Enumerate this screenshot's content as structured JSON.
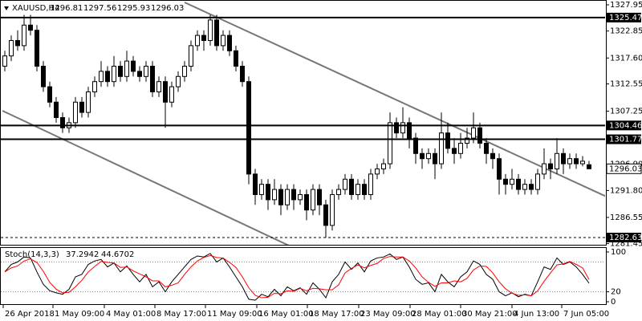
{
  "chart_data": {
    "type": "candlestick",
    "symbol": "XAUUSD,H4",
    "candles": [
      [
        1316,
        1319,
        1315,
        1318
      ],
      [
        1318,
        1322,
        1317,
        1321
      ],
      [
        1321,
        1323,
        1319,
        1320
      ],
      [
        1320,
        1326,
        1319,
        1324
      ],
      [
        1324,
        1326,
        1322,
        1323
      ],
      [
        1323,
        1324,
        1315,
        1316
      ],
      [
        1316,
        1317,
        1311,
        1312
      ],
      [
        1312,
        1313,
        1308,
        1309
      ],
      [
        1309,
        1310,
        1305,
        1306
      ],
      [
        1306,
        1307,
        1303,
        1304
      ],
      [
        1304,
        1306,
        1303,
        1305
      ],
      [
        1305,
        1310,
        1304,
        1309
      ],
      [
        1309,
        1310,
        1306,
        1307
      ],
      [
        1307,
        1312,
        1306,
        1311
      ],
      [
        1311,
        1314,
        1310,
        1313
      ],
      [
        1313,
        1317,
        1312,
        1315
      ],
      [
        1315,
        1316,
        1312,
        1313
      ],
      [
        1313,
        1318,
        1312,
        1316
      ],
      [
        1316,
        1317,
        1313,
        1314
      ],
      [
        1314,
        1319,
        1313,
        1317
      ],
      [
        1317,
        1318,
        1314,
        1315
      ],
      [
        1315,
        1316,
        1313,
        1314
      ],
      [
        1314,
        1317,
        1313,
        1316
      ],
      [
        1316,
        1317,
        1310,
        1311
      ],
      [
        1311,
        1314,
        1310,
        1313
      ],
      [
        1313,
        1314,
        1304,
        1309
      ],
      [
        1309,
        1313,
        1308,
        1312
      ],
      [
        1312,
        1315,
        1311,
        1314
      ],
      [
        1314,
        1317,
        1313,
        1316
      ],
      [
        1316,
        1321,
        1315,
        1320
      ],
      [
        1320,
        1323,
        1319,
        1322
      ],
      [
        1322,
        1323,
        1319,
        1321
      ],
      [
        1321,
        1326,
        1320,
        1325
      ],
      [
        1325,
        1326,
        1319,
        1320
      ],
      [
        1320,
        1323,
        1319,
        1322
      ],
      [
        1322,
        1323,
        1318,
        1319
      ],
      [
        1319,
        1320,
        1315,
        1316
      ],
      [
        1316,
        1317,
        1312,
        1313
      ],
      [
        1313,
        1314,
        1293,
        1295
      ],
      [
        1295,
        1296,
        1289,
        1291
      ],
      [
        1291,
        1294,
        1290,
        1293
      ],
      [
        1293,
        1294,
        1288,
        1290
      ],
      [
        1290,
        1294,
        1289,
        1292
      ],
      [
        1292,
        1293,
        1287,
        1289
      ],
      [
        1289,
        1293,
        1288,
        1292
      ],
      [
        1292,
        1293,
        1288,
        1290
      ],
      [
        1290,
        1292,
        1289,
        1291
      ],
      [
        1291,
        1292,
        1286,
        1288
      ],
      [
        1288,
        1293,
        1287,
        1292
      ],
      [
        1292,
        1293,
        1287,
        1289
      ],
      [
        1289,
        1290,
        1282.6,
        1285
      ],
      [
        1285,
        1292,
        1284,
        1291
      ],
      [
        1291,
        1293,
        1290,
        1292
      ],
      [
        1292,
        1295,
        1291,
        1294
      ],
      [
        1294,
        1295,
        1290,
        1291
      ],
      [
        1291,
        1294,
        1290,
        1293
      ],
      [
        1293,
        1294,
        1290,
        1291
      ],
      [
        1291,
        1296,
        1290,
        1295
      ],
      [
        1295,
        1297,
        1294,
        1296
      ],
      [
        1296,
        1298,
        1295,
        1297
      ],
      [
        1297,
        1307,
        1296,
        1305
      ],
      [
        1305,
        1306,
        1302,
        1303
      ],
      [
        1303,
        1308,
        1302,
        1305
      ],
      [
        1305,
        1306,
        1300,
        1302
      ],
      [
        1302,
        1303,
        1297,
        1299
      ],
      [
        1299,
        1300,
        1296,
        1298
      ],
      [
        1298,
        1300,
        1297,
        1299
      ],
      [
        1299,
        1300,
        1294,
        1297
      ],
      [
        1297,
        1307,
        1296,
        1303
      ],
      [
        1303,
        1305,
        1299,
        1300
      ],
      [
        1300,
        1302,
        1297,
        1299
      ],
      [
        1299,
        1303,
        1298,
        1301
      ],
      [
        1301,
        1304,
        1300,
        1302
      ],
      [
        1302,
        1307,
        1301,
        1304
      ],
      [
        1304,
        1305,
        1300,
        1301
      ],
      [
        1301,
        1302,
        1297,
        1299
      ],
      [
        1299,
        1300,
        1296,
        1298
      ],
      [
        1298,
        1299,
        1291,
        1294
      ],
      [
        1294,
        1295,
        1291,
        1293
      ],
      [
        1293,
        1296,
        1292,
        1294
      ],
      [
        1294,
        1295,
        1291,
        1292
      ],
      [
        1292,
        1294,
        1291,
        1293
      ],
      [
        1293,
        1294,
        1291,
        1292
      ],
      [
        1292,
        1296,
        1291,
        1295
      ],
      [
        1295,
        1300,
        1294,
        1297
      ],
      [
        1297,
        1298,
        1294,
        1296
      ],
      [
        1296,
        1302,
        1295,
        1299
      ],
      [
        1299,
        1300,
        1295,
        1297
      ],
      [
        1297,
        1299,
        1296,
        1298
      ],
      [
        1298,
        1299,
        1296,
        1297
      ],
      [
        1297,
        1298.5,
        1296.5,
        1297.5
      ],
      [
        1296.81,
        1297.56,
        1295.93,
        1296.03
      ]
    ],
    "ylim": [
      1281.23,
      1328.89
    ],
    "yticks": [
      1327.95,
      1322.85,
      {
        "value": 1317.6,
        "label": "1317.60"
      },
      1312.55,
      1307.25,
      {
        "value": 1296.9,
        "label": "1296.90"
      },
      {
        "value": 1291.8,
        "label": "1291.80"
      },
      1286.55,
      1281.45
    ],
    "levels": [
      {
        "value": 1325.47,
        "style": "solid"
      },
      {
        "value": 1304.46,
        "style": "solid"
      },
      {
        "value": 1301.77,
        "style": "solid"
      },
      {
        "value": 1282.63,
        "style": "dashed"
      }
    ],
    "time_labels": [
      "26 Apr 2018",
      "1 May 09:00",
      "4 May 01:00",
      "8 May 17:00",
      "11 May 09:00",
      "16 May 01:00",
      "18 May 17:00",
      "23 May 09:00",
      "28 May 01:00",
      "30 May 21:00",
      "4 Jun 13:00",
      "7 Jun 05:00"
    ],
    "indicator": {
      "type": "stoch",
      "title": "Stoch(14,3,3)",
      "ylim": [
        0,
        100
      ],
      "yticks": [
        100,
        20,
        0
      ],
      "levels": [
        80,
        20
      ],
      "series": [
        {
          "color": "#000000",
          "values": [
            60,
            75,
            80,
            90,
            88,
            60,
            35,
            22,
            18,
            15,
            25,
            50,
            55,
            75,
            82,
            85,
            70,
            78,
            60,
            72,
            55,
            40,
            55,
            30,
            40,
            20,
            40,
            55,
            70,
            85,
            92,
            90,
            97,
            80,
            88,
            70,
            50,
            30,
            5,
            3,
            15,
            10,
            25,
            12,
            30,
            22,
            28,
            15,
            38,
            25,
            8,
            40,
            55,
            80,
            65,
            78,
            60,
            82,
            88,
            90,
            96,
            85,
            90,
            70,
            45,
            35,
            38,
            20,
            55,
            40,
            30,
            50,
            60,
            82,
            75,
            55,
            45,
            20,
            12,
            18,
            10,
            15,
            12,
            40,
            70,
            65,
            88,
            75,
            80,
            70,
            55,
            37.2942
          ]
        },
        {
          "color": "#ff0000",
          "values": [
            60,
            68,
            72,
            82,
            86,
            79,
            61,
            39,
            25,
            18,
            19,
            30,
            43,
            60,
            71,
            81,
            79,
            78,
            69,
            70,
            62,
            56,
            50,
            42,
            42,
            30,
            33,
            38,
            55,
            70,
            82,
            89,
            93,
            89,
            88,
            79,
            69,
            50,
            28,
            13,
            8,
            9,
            17,
            16,
            22,
            21,
            27,
            22,
            27,
            26,
            24,
            24,
            34,
            58,
            67,
            74,
            68,
            73,
            77,
            87,
            91,
            90,
            90,
            82,
            68,
            50,
            39,
            31,
            38,
            38,
            42,
            40,
            47,
            64,
            72,
            71,
            58,
            40,
            26,
            17,
            13,
            14,
            12,
            22,
            41,
            58,
            74,
            76,
            81,
            75,
            68,
            44.6702
          ]
        }
      ]
    }
  }
}
